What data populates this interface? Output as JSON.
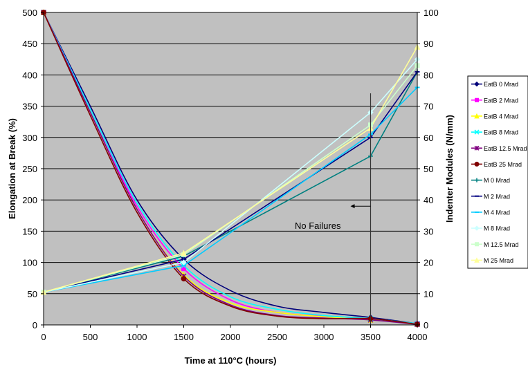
{
  "chart_data": {
    "type": "line",
    "xlabel": "Time at 110°C (hours)",
    "ylabel": "Elongation at Break (%)",
    "y2label": "Indenter Modules (N/mm)",
    "xlim": [
      0,
      4000
    ],
    "ylim": [
      0,
      500
    ],
    "y2lim": [
      0,
      100
    ],
    "x_ticks": [
      "0",
      "500",
      "1000",
      "1500",
      "2000",
      "2500",
      "3000",
      "3500",
      "4000"
    ],
    "y_ticks": [
      "0",
      "50",
      "100",
      "150",
      "200",
      "250",
      "300",
      "350",
      "400",
      "450",
      "500"
    ],
    "y2_ticks": [
      "0",
      "10",
      "20",
      "30",
      "40",
      "50",
      "60",
      "70",
      "80",
      "90",
      "100"
    ],
    "grid": "horizontal",
    "plot_background": "#c0c0c0",
    "legend_position": "right",
    "annotation": {
      "text": "No Failures",
      "arrow_at_x": 3500,
      "arrow_y": 190,
      "arrow_from_x": 3300
    },
    "vertical_marker_x": 3500,
    "series": [
      {
        "name": "EatB 0 Mrad",
        "axis": "left",
        "color": "#00007a",
        "marker": "diamond",
        "x": [
          0,
          500,
          1000,
          1500,
          2000,
          2500,
          3000,
          3500,
          4000
        ],
        "values": [
          500,
          350,
          200,
          105,
          55,
          30,
          20,
          12,
          2
        ]
      },
      {
        "name": "EatB 2 Mrad",
        "axis": "left",
        "color": "#ff00ff",
        "marker": "square",
        "x": [
          0,
          500,
          1000,
          1500,
          2000,
          2500,
          3000,
          3500,
          4000
        ],
        "values": [
          500,
          345,
          190,
          90,
          40,
          20,
          14,
          9,
          2
        ]
      },
      {
        "name": "EatB 4 Mrad",
        "axis": "left",
        "color": "#ffff00",
        "marker": "triangle",
        "x": [
          0,
          500,
          1000,
          1500,
          2000,
          2500,
          3000,
          3500,
          4000
        ],
        "values": [
          500,
          340,
          185,
          80,
          35,
          20,
          13,
          8,
          2
        ]
      },
      {
        "name": "EatB 8 Mrad",
        "axis": "left",
        "color": "#00ffff",
        "marker": "x",
        "x": [
          0,
          500,
          1000,
          1500,
          2000,
          2500,
          3000,
          3500,
          4000
        ],
        "values": [
          500,
          345,
          195,
          95,
          45,
          25,
          15,
          10,
          2
        ]
      },
      {
        "name": "EatB 12.5 Mrad",
        "axis": "left",
        "color": "#800080",
        "marker": "star",
        "x": [
          0,
          500,
          1000,
          1500,
          2000,
          2500,
          3000,
          3500,
          4000
        ],
        "values": [
          500,
          340,
          185,
          78,
          32,
          15,
          11,
          8,
          1
        ]
      },
      {
        "name": "EatB 25 Mrad",
        "axis": "left",
        "color": "#800000",
        "marker": "circle",
        "x": [
          0,
          500,
          1000,
          1500,
          2000,
          2500,
          3000,
          3500,
          4000
        ],
        "values": [
          500,
          335,
          180,
          74,
          30,
          14,
          10,
          10,
          1
        ]
      },
      {
        "name": "M 0 Mrad",
        "axis": "right",
        "color": "#008080",
        "marker": "plus",
        "x": [
          0,
          1500,
          3500,
          4000
        ],
        "values": [
          10.5,
          22,
          54,
          81
        ]
      },
      {
        "name": "M 2 Mrad",
        "axis": "right",
        "color": "#000080",
        "marker": "dash",
        "x": [
          0,
          1500,
          3500,
          4000
        ],
        "values": [
          10.5,
          21,
          60,
          81
        ]
      },
      {
        "name": "M 4 Mrad",
        "axis": "right",
        "color": "#00ccff",
        "marker": "dash",
        "x": [
          0,
          1500,
          3500,
          4000
        ],
        "values": [
          10.5,
          19,
          61,
          76
        ]
      },
      {
        "name": "M 8 Mrad",
        "axis": "right",
        "color": "#ccffff",
        "marker": "diamond",
        "x": [
          0,
          1500,
          3500,
          4000
        ],
        "values": [
          10.5,
          20,
          68,
          85
        ]
      },
      {
        "name": "M 12.5 Mrad",
        "axis": "right",
        "color": "#ccffcc",
        "marker": "square",
        "x": [
          0,
          1500,
          3500,
          4000
        ],
        "values": [
          10.5,
          22.5,
          64,
          83
        ]
      },
      {
        "name": "M 25 Mrad",
        "axis": "right",
        "color": "#ffff99",
        "marker": "triangle",
        "x": [
          0,
          1500,
          3500,
          4000
        ],
        "values": [
          10.5,
          23,
          63,
          89
        ]
      }
    ]
  }
}
